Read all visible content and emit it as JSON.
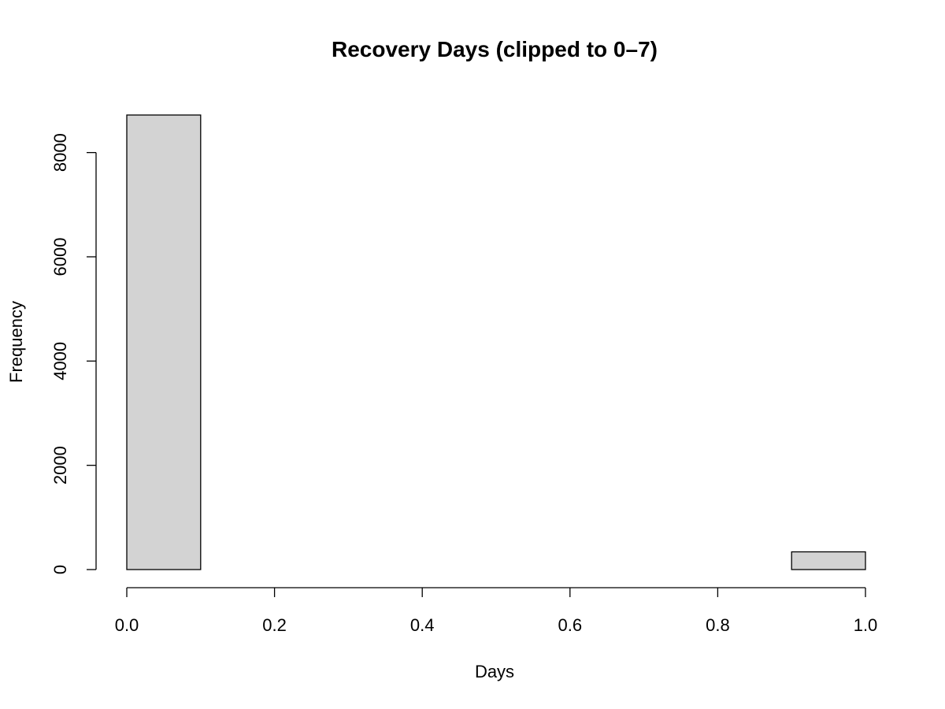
{
  "chart_data": {
    "type": "bar",
    "subtype": "histogram",
    "title": "Recovery Days (clipped to 0–7)",
    "xlabel": "Days",
    "ylabel": "Frequency",
    "bins": [
      {
        "start": 0.0,
        "end": 0.1,
        "count": 8720
      },
      {
        "start": 0.1,
        "end": 0.2,
        "count": 0
      },
      {
        "start": 0.2,
        "end": 0.3,
        "count": 0
      },
      {
        "start": 0.3,
        "end": 0.4,
        "count": 0
      },
      {
        "start": 0.4,
        "end": 0.5,
        "count": 0
      },
      {
        "start": 0.5,
        "end": 0.6,
        "count": 0
      },
      {
        "start": 0.6,
        "end": 0.7,
        "count": 0
      },
      {
        "start": 0.7,
        "end": 0.8,
        "count": 0
      },
      {
        "start": 0.8,
        "end": 0.9,
        "count": 0
      },
      {
        "start": 0.9,
        "end": 1.0,
        "count": 340
      }
    ],
    "xlim": [
      0,
      1
    ],
    "ylim": [
      0,
      8720
    ],
    "x_ticks": [
      {
        "value": 0.0,
        "label": "0.0"
      },
      {
        "value": 0.2,
        "label": "0.2"
      },
      {
        "value": 0.4,
        "label": "0.4"
      },
      {
        "value": 0.6,
        "label": "0.6"
      },
      {
        "value": 0.8,
        "label": "0.8"
      },
      {
        "value": 1.0,
        "label": "1.0"
      }
    ],
    "y_ticks": [
      {
        "value": 0,
        "label": "0"
      },
      {
        "value": 2000,
        "label": "2000"
      },
      {
        "value": 4000,
        "label": "4000"
      },
      {
        "value": 6000,
        "label": "6000"
      },
      {
        "value": 8000,
        "label": "8000"
      }
    ],
    "grid": false,
    "legend": "none",
    "colors": {
      "bar_fill": "#d3d3d3",
      "bar_stroke": "#000000",
      "axis": "#000000",
      "background": "#ffffff"
    }
  }
}
